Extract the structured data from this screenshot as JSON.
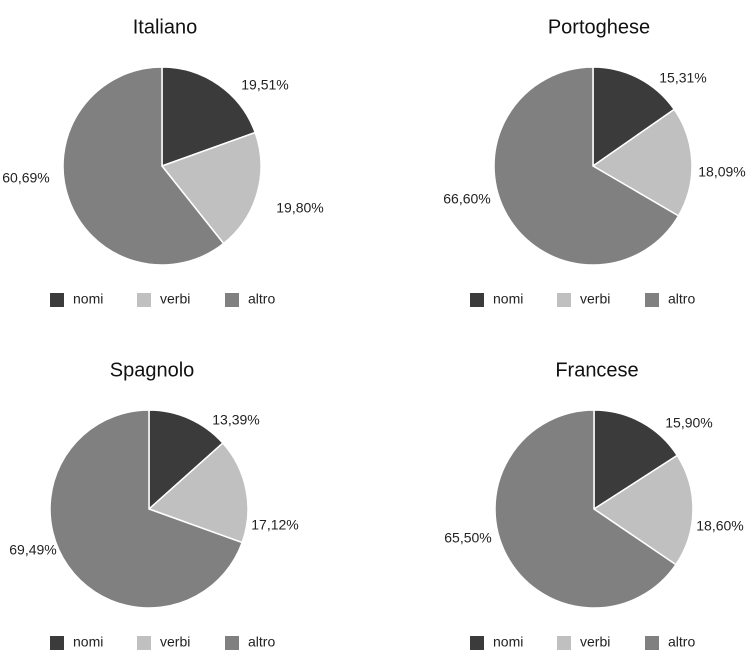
{
  "chart_data": [
    {
      "type": "pie",
      "title": "Italiano",
      "categories": [
        "nomi",
        "verbi",
        "altro"
      ],
      "values": [
        19.51,
        19.8,
        60.69
      ],
      "value_labels": [
        "19,51%",
        "19,80%",
        "60,69%"
      ],
      "colors": [
        "#3b3b3b",
        "#c0c0c0",
        "#808080"
      ],
      "legend": [
        "nomi",
        "verbi",
        "altro"
      ],
      "legend_position": "bottom"
    },
    {
      "type": "pie",
      "title": "Portoghese",
      "categories": [
        "nomi",
        "verbi",
        "altro"
      ],
      "values": [
        15.31,
        18.09,
        66.6
      ],
      "value_labels": [
        "15,31%",
        "18,09%",
        "66,60%"
      ],
      "colors": [
        "#3b3b3b",
        "#c0c0c0",
        "#808080"
      ],
      "legend": [
        "nomi",
        "verbi",
        "altro"
      ],
      "legend_position": "bottom"
    },
    {
      "type": "pie",
      "title": "Spagnolo",
      "categories": [
        "nomi",
        "verbi",
        "altro"
      ],
      "values": [
        13.39,
        17.12,
        69.49
      ],
      "value_labels": [
        "13,39%",
        "17,12%",
        "69,49%"
      ],
      "colors": [
        "#3b3b3b",
        "#c0c0c0",
        "#808080"
      ],
      "legend": [
        "nomi",
        "verbi",
        "altro"
      ],
      "legend_position": "bottom"
    },
    {
      "type": "pie",
      "title": "Francese",
      "categories": [
        "nomi",
        "verbi",
        "altro"
      ],
      "values": [
        15.9,
        18.6,
        65.5
      ],
      "value_labels": [
        "15,90%",
        "18,60%",
        "65,50%"
      ],
      "colors": [
        "#3b3b3b",
        "#c0c0c0",
        "#808080"
      ],
      "legend": [
        "nomi",
        "verbi",
        "altro"
      ],
      "legend_position": "bottom"
    }
  ]
}
